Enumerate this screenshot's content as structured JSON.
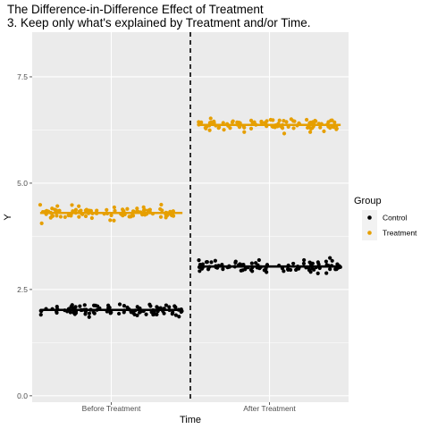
{
  "colors": {
    "control": "#000000",
    "treatment": "#E69F00",
    "panel": "#EBEBEB",
    "grid": "#FFFFFF",
    "tick_text": "#4D4D4D"
  },
  "chart_data": {
    "type": "scatter",
    "title": "The Difference-in-Difference Effect of Treatment",
    "subtitle": "3. Keep only what's explained by Treatment and/or Time.",
    "xlabel": "Time",
    "ylabel": "Y",
    "categories": [
      "Before Treatment",
      "After Treatment"
    ],
    "ylim": [
      -0.15,
      8.55
    ],
    "yticks": [
      0.0,
      2.5,
      5.0,
      7.5
    ],
    "ytick_labels": [
      "0.0",
      "2.5",
      "5.0",
      "7.5"
    ],
    "grid": true,
    "legend": {
      "title": "Group",
      "position": "right",
      "entries": [
        "Control",
        "Treatment"
      ]
    },
    "jitter_spread": 0.45,
    "points_per_group": 100,
    "series": [
      {
        "name": "Control",
        "color_key": "control",
        "means": [
          2.02,
          3.04
        ],
        "noise_sd": 0.07
      },
      {
        "name": "Treatment",
        "color_key": "treatment",
        "means": [
          4.3,
          6.37
        ],
        "noise_sd": 0.07
      }
    ],
    "reference_line": {
      "type": "vertical-dashed",
      "at": "between categories"
    }
  }
}
